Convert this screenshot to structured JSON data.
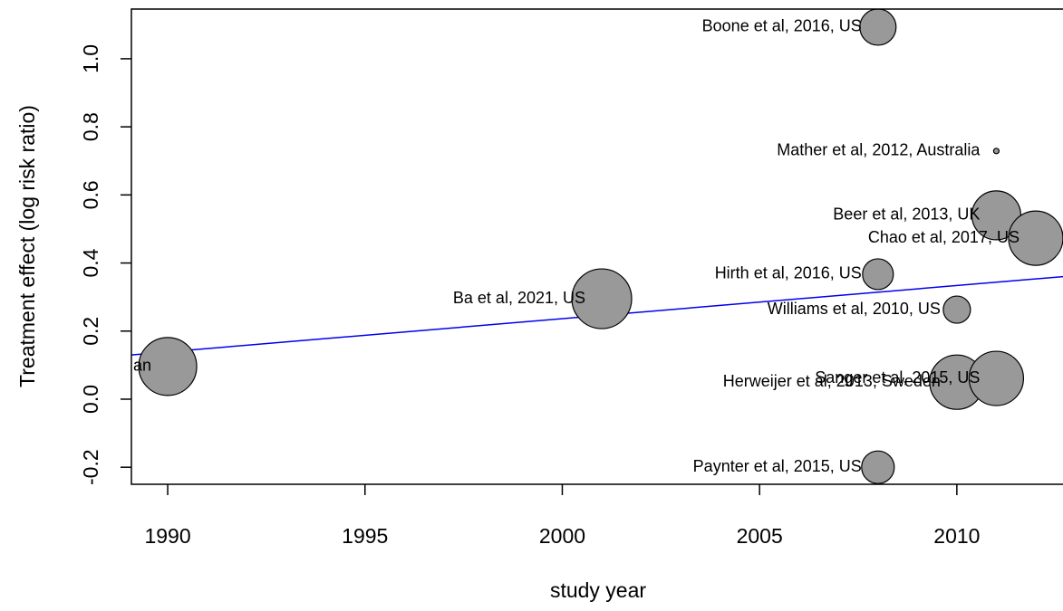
{
  "chart_data": {
    "type": "scatter",
    "x_label": "study year",
    "y_label": "Treatment effect (log risk ratio)",
    "x": [
      1990,
      2001,
      2008,
      2011,
      2011,
      2012,
      2008,
      2010,
      2010,
      2011,
      2008
    ],
    "values": [
      0.096,
      0.295,
      1.093,
      0.729,
      0.54,
      0.473,
      0.367,
      0.263,
      0.05,
      0.061,
      -0.2
    ],
    "sizes": [
      32,
      33,
      20,
      3,
      27,
      30,
      17,
      15,
      30,
      30,
      18
    ],
    "labels": [
      "an",
      "Ba et al, 2021, US",
      "Boone et al, 2016, US",
      "Mather et al, 2012, Australia",
      "Beer et al, 2013, UK",
      "Chao et al, 2017, US",
      "Hirth et al, 2016, US",
      "Williams et al, 2010, US",
      "Herweijer et al, 2013, Sweden",
      "Sanger et al, 2015, US",
      "Paynter et al, 2015, US"
    ],
    "color": "#999999",
    "fit": {
      "x": [
        1989.08,
        2012.69
      ],
      "values": [
        0.13,
        0.36
      ],
      "color": "#0000ee"
    },
    "xlim": [
      1989.08,
      2012.69
    ],
    "xticks": [
      1990,
      1995,
      2000,
      2005,
      2010
    ],
    "ylim": [
      -0.25,
      1.146
    ],
    "yticks": [
      {
        "value": -0.2,
        "label": "-0.2"
      },
      {
        "value": 0,
        "label": "0.0"
      },
      {
        "value": 0.2,
        "label": "0.2"
      },
      {
        "value": 0.4,
        "label": "0.4"
      },
      {
        "value": 0.6,
        "label": "0.6"
      },
      {
        "value": 0.8,
        "label": "0.8"
      },
      {
        "value": 1,
        "label": "1.0"
      }
    ]
  }
}
